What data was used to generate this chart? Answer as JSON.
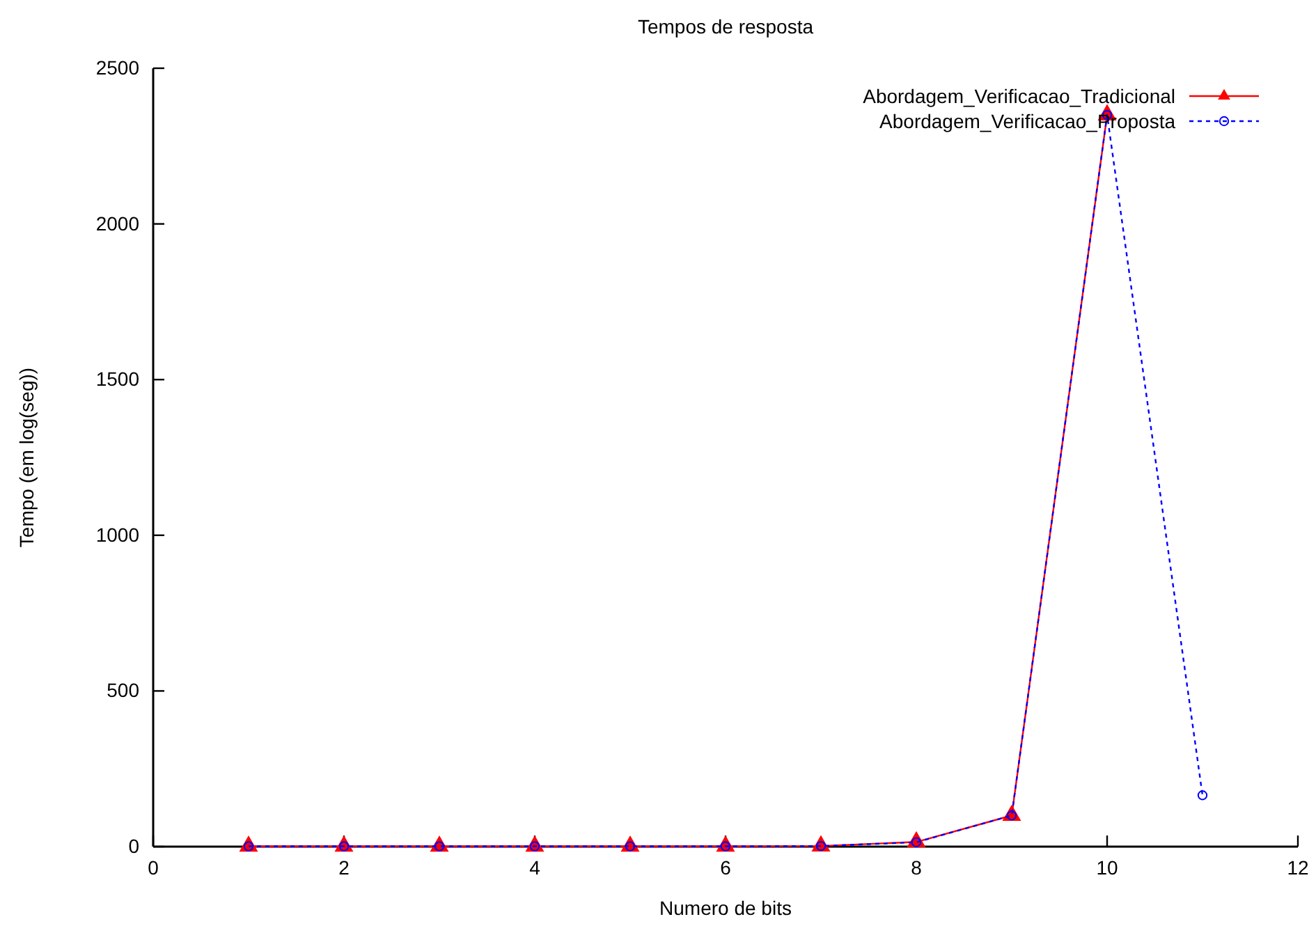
{
  "chart_data": {
    "type": "line",
    "title": "Tempos de resposta",
    "xlabel": "Numero de bits",
    "ylabel": "Tempo (em log(seg))",
    "xlim": [
      0,
      12
    ],
    "xticks": [
      0,
      2,
      4,
      6,
      8,
      10,
      12
    ],
    "ylim": [
      0,
      2500
    ],
    "yticks": [
      0,
      500,
      1000,
      1500,
      2000,
      2500
    ],
    "grid": false,
    "legend": "top right",
    "series": [
      {
        "name": "Abordagem_Verificacao_Tradicional",
        "color": "#ff0000",
        "marker": "triangle",
        "line_style": "solid",
        "x": [
          1,
          2,
          3,
          4,
          5,
          6,
          7,
          8,
          9,
          10
        ],
        "values": [
          1,
          1,
          1,
          1,
          1,
          1,
          2,
          15,
          100,
          2350
        ]
      },
      {
        "name": "Abordagem_Verificacao_Proposta",
        "color": "#0000ff",
        "marker": "circle",
        "line_style": "dashed",
        "x": [
          1,
          2,
          3,
          4,
          5,
          6,
          7,
          8,
          9,
          10,
          11
        ],
        "values": [
          1,
          1,
          1,
          1,
          1,
          1,
          2,
          14,
          100,
          2350,
          165
        ]
      }
    ]
  }
}
